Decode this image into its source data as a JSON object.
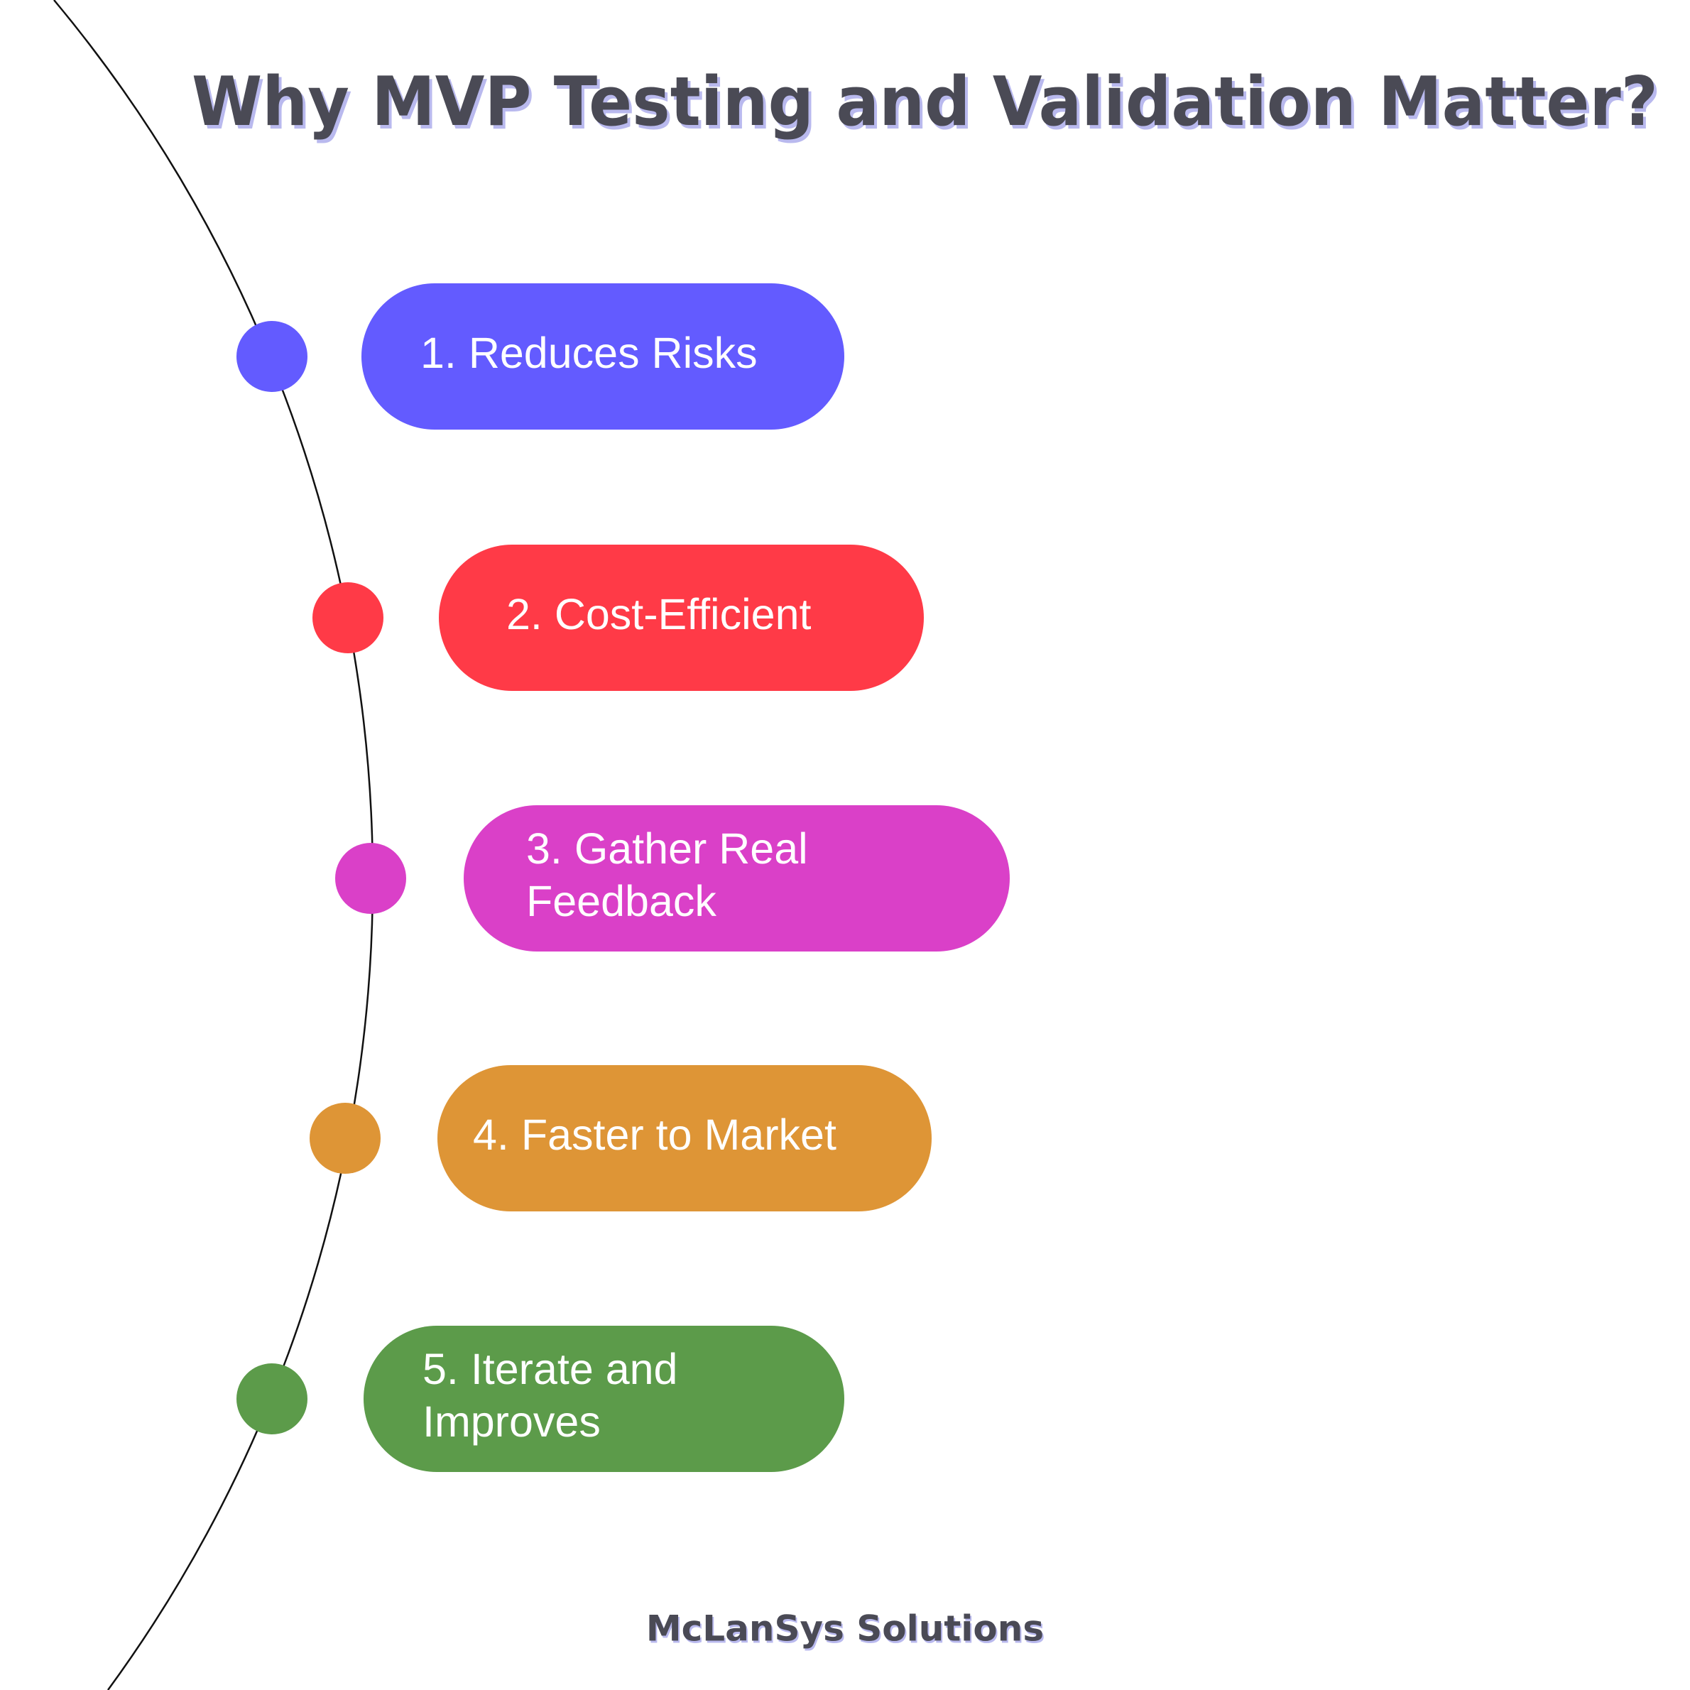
{
  "title": "Why MVP Testing and Validation Matter?",
  "items": [
    {
      "lines": [
        "1. Reduces Risks"
      ],
      "color": "#635bff"
    },
    {
      "lines": [
        "2. Cost-Efficient"
      ],
      "color": "#ff3a47"
    },
    {
      "lines": [
        "3. Gather Real",
        "Feedback"
      ],
      "color": "#da40c8"
    },
    {
      "lines": [
        "4. Faster to Market"
      ],
      "color": "#de9536"
    },
    {
      "lines": [
        "5. Iterate and",
        "Improves"
      ],
      "color": "#5c9b4a"
    }
  ],
  "footer": "McLanSys Solutions"
}
